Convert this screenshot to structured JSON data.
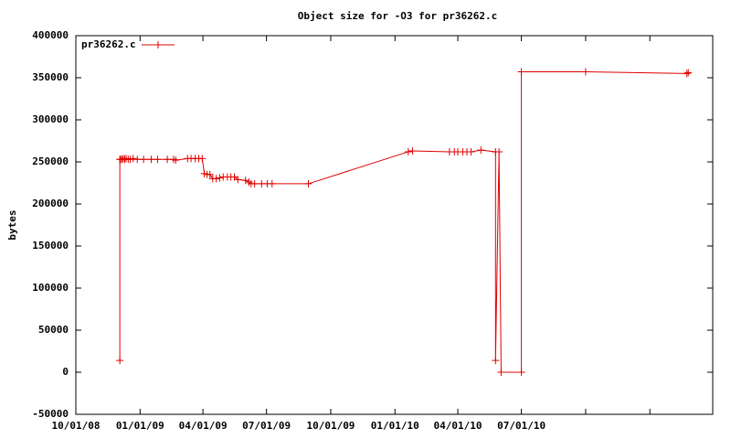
{
  "chart_data": {
    "type": "line",
    "title": "Object size for -O3 for pr36262.c",
    "y_label": "bytes",
    "x": [
      "12/03/08",
      "12/03/08",
      "12/04/08",
      "12/06/08",
      "12/08/08",
      "12/10/08",
      "12/12/08",
      "12/15/08",
      "12/18/08",
      "12/22/08",
      "12/28/08",
      "01/06/09",
      "01/17/09",
      "01/26/09",
      "02/09/09",
      "02/18/09",
      "02/21/09",
      "03/10/09",
      "03/15/09",
      "03/21/09",
      "03/26/09",
      "03/31/09",
      "04/03/09",
      "04/07/09",
      "04/11/09",
      "04/15/09",
      "04/20/09",
      "04/25/09",
      "04/30/09",
      "05/06/09",
      "05/11/09",
      "05/16/09",
      "05/21/09",
      "06/01/09",
      "06/06/09",
      "06/09/09",
      "06/14/09",
      "06/24/09",
      "07/02/09",
      "07/09/09",
      "08/30/09",
      "01/20/10",
      "01/26/10",
      "03/20/10",
      "03/27/10",
      "04/01/10",
      "04/08/10",
      "04/14/10",
      "04/20/10",
      "05/04/10",
      "05/25/10",
      "05/25/10",
      "05/30/10",
      "06/02/10",
      "07/01/10",
      "07/01/10",
      "10/01/10",
      "02/23/11",
      "02/25/11"
    ],
    "series": [
      {
        "name": "pr36262.c",
        "color": "#e00000",
        "values": [
          14000,
          253000,
          253000,
          253000,
          254000,
          253000,
          254000,
          253000,
          253000,
          254000,
          253000,
          253000,
          253000,
          253000,
          253000,
          253000,
          252000,
          254000,
          254000,
          254000,
          254000,
          254000,
          236000,
          235000,
          235000,
          230000,
          230000,
          231000,
          232000,
          232000,
          232000,
          232000,
          229000,
          228000,
          226000,
          224000,
          224000,
          224000,
          224000,
          224000,
          224000,
          262000,
          263000,
          262000,
          262000,
          262000,
          262000,
          262000,
          262000,
          264000,
          262000,
          14000,
          262000,
          0,
          0,
          357000,
          357000,
          355000,
          356000
        ]
      }
    ],
    "xlim": [
      "10/01/08",
      "04/01/11"
    ],
    "xticks": [
      "10/01/08",
      "01/01/09",
      "04/01/09",
      "07/01/09",
      "10/01/09",
      "01/01/10",
      "04/01/10",
      "07/01/10",
      {
        "value": "10/01/10",
        "label": null
      },
      {
        "value": "01/01/11",
        "label": null
      }
    ],
    "ylim": [
      -50000,
      400000
    ],
    "yticks": [
      -50000,
      0,
      50000,
      100000,
      150000,
      200000,
      250000,
      300000,
      350000,
      400000
    ],
    "legend": "top-left"
  }
}
